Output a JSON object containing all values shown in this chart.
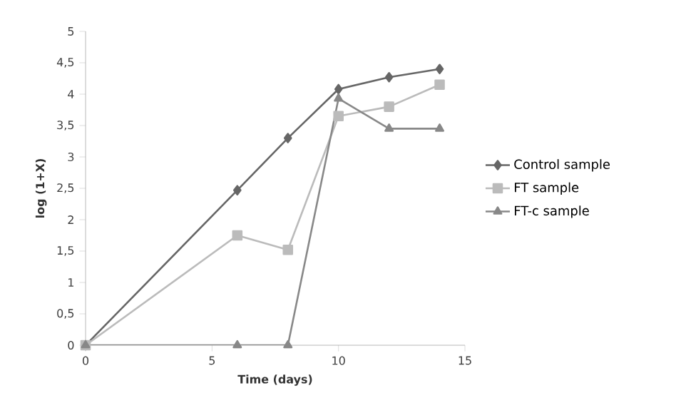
{
  "chart_data": {
    "type": "line",
    "xlabel": "Time (days)",
    "ylabel": "log (1+X)",
    "xlim": [
      0,
      15
    ],
    "xticks": [
      0,
      5,
      10,
      15
    ],
    "ylim": [
      0,
      5
    ],
    "yticks": [
      0,
      {
        "value": 0.5,
        "label": "0,5"
      },
      1,
      {
        "value": 1.5,
        "label": "1,5"
      },
      2,
      {
        "value": 2.5,
        "label": "2,5"
      },
      3,
      {
        "value": 3.5,
        "label": "3,5"
      },
      4,
      {
        "value": 4.5,
        "label": "4,5"
      },
      5
    ],
    "grid": false,
    "legend": "right",
    "line_style": "solid",
    "series": [
      {
        "name": "Control sample",
        "color": "#666666",
        "marker": "diamond",
        "x": [
          0,
          6,
          8,
          10,
          12,
          14
        ],
        "values": [
          0,
          2.47,
          3.3,
          4.08,
          4.27,
          4.4
        ]
      },
      {
        "name": "FT sample",
        "color": "#bbbbbb",
        "marker": "square",
        "x": [
          0,
          6,
          8,
          10,
          12,
          14
        ],
        "values": [
          0,
          1.75,
          1.52,
          3.65,
          3.8,
          4.15
        ]
      },
      {
        "name": "FT-c sample",
        "color": "#888888",
        "marker": "triangle",
        "x": [
          0,
          6,
          8,
          10,
          12,
          14
        ],
        "values": [
          0,
          0,
          0,
          3.93,
          3.45,
          3.45
        ]
      }
    ]
  }
}
